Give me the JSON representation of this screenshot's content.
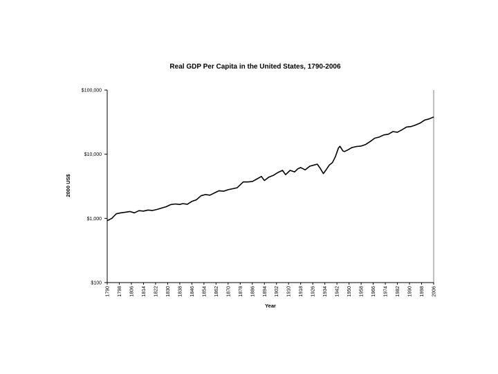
{
  "chart_data": {
    "type": "line",
    "title": "Real GDP Per Capita in the United States, 1790-2006",
    "xlabel": "Year",
    "ylabel": "2000 US$",
    "y_scale": "log",
    "ylim": [
      100,
      100000
    ],
    "xlim": [
      1790,
      2006
    ],
    "y_ticks": [
      100,
      1000,
      10000,
      100000
    ],
    "y_tick_labels": [
      "$100",
      "$1,000",
      "$10,000",
      "$100,000"
    ],
    "x_ticks": [
      1790,
      1798,
      1806,
      1814,
      1822,
      1830,
      1838,
      1846,
      1854,
      1862,
      1870,
      1878,
      1886,
      1894,
      1902,
      1910,
      1918,
      1926,
      1934,
      1942,
      1950,
      1958,
      1966,
      1974,
      1982,
      1990,
      1998,
      2006
    ],
    "x_tick_labels": [
      "1790",
      "1798",
      "1806",
      "1814",
      "1822",
      "1830",
      "1838",
      "1846",
      "1854",
      "1862",
      "1870",
      "1878",
      "1886",
      "1894",
      "1902",
      "1910",
      "1918",
      "1926",
      "1934",
      "1942",
      "1950",
      "1958",
      "1966",
      "1974",
      "1982",
      "1990",
      "1998",
      "2006"
    ],
    "grid": false,
    "legend": "none",
    "line_color": "#000000",
    "x": [
      1790,
      1793,
      1796,
      1799,
      1802,
      1805,
      1808,
      1811,
      1814,
      1817,
      1820,
      1823,
      1826,
      1829,
      1832,
      1835,
      1838,
      1840,
      1843,
      1846,
      1849,
      1852,
      1855,
      1858,
      1861,
      1864,
      1867,
      1870,
      1873,
      1876,
      1880,
      1883,
      1886,
      1889,
      1892,
      1894,
      1897,
      1900,
      1903,
      1906,
      1908,
      1911,
      1914,
      1916,
      1918,
      1921,
      1924,
      1927,
      1929,
      1931,
      1933,
      1935,
      1937,
      1939,
      1941,
      1943,
      1944,
      1946,
      1947,
      1949,
      1952,
      1955,
      1958,
      1961,
      1964,
      1967,
      1970,
      1973,
      1976,
      1979,
      1982,
      1985,
      1988,
      1991,
      1994,
      1997,
      2000,
      2003,
      2006
    ],
    "values": [
      920,
      1000,
      1180,
      1220,
      1250,
      1280,
      1220,
      1320,
      1300,
      1350,
      1330,
      1380,
      1450,
      1520,
      1640,
      1680,
      1650,
      1700,
      1660,
      1840,
      1950,
      2250,
      2350,
      2300,
      2500,
      2700,
      2650,
      2800,
      2900,
      3000,
      3700,
      3700,
      3750,
      4100,
      4500,
      3900,
      4400,
      4700,
      5200,
      5600,
      4800,
      5600,
      5300,
      5900,
      6200,
      5700,
      6500,
      6800,
      7000,
      6000,
      5000,
      5800,
      6800,
      7400,
      9200,
      12500,
      13300,
      11200,
      11000,
      11600,
      12700,
      13200,
      13400,
      14200,
      15800,
      17800,
      18500,
      20000,
      20500,
      22500,
      22000,
      24000,
      26500,
      27000,
      28500,
      30500,
      34000,
      35500,
      38000
    ]
  }
}
